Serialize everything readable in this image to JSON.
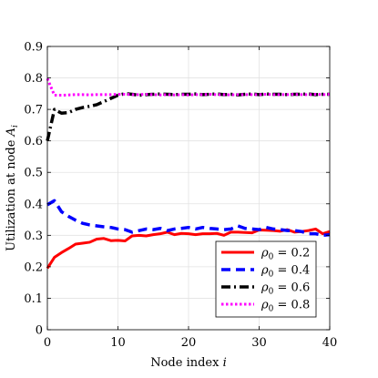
{
  "chart_data": {
    "type": "line",
    "title": "",
    "xlabel_text": "Node index ",
    "xlabel_var": "i",
    "ylabel_text": "Utilization at node ",
    "ylabel_var": "A",
    "ylabel_sub": "i",
    "xlim": [
      0,
      40
    ],
    "ylim": [
      0,
      0.9
    ],
    "xticks": [
      0,
      10,
      20,
      30,
      40
    ],
    "yticks": [
      0,
      0.1,
      0.2,
      0.3,
      0.4,
      0.5,
      0.6,
      0.7,
      0.8,
      0.9
    ],
    "xtick_labels": [
      "0",
      "10",
      "20",
      "30",
      "40"
    ],
    "ytick_labels": [
      "0",
      "0.1",
      "0.2",
      "0.3",
      "0.4",
      "0.5",
      "0.6",
      "0.7",
      "0.8",
      "0.9"
    ],
    "grid": true,
    "legend_position": "bottom-right",
    "x": [
      0,
      1,
      2,
      3,
      4,
      5,
      6,
      7,
      8,
      9,
      10,
      11,
      12,
      13,
      14,
      15,
      16,
      17,
      18,
      19,
      20,
      21,
      22,
      23,
      24,
      25,
      26,
      27,
      28,
      29,
      30,
      31,
      32,
      33,
      34,
      35,
      36,
      37,
      38,
      39,
      40
    ],
    "series": [
      {
        "name_symbol": "ρ",
        "name_sub": "0",
        "name_rest": " = 0.2",
        "color": "#ff0000",
        "dash": "solid",
        "values": [
          0.195,
          0.23,
          0.245,
          0.258,
          0.272,
          0.275,
          0.278,
          0.288,
          0.29,
          0.283,
          0.284,
          0.282,
          0.298,
          0.3,
          0.298,
          0.302,
          0.305,
          0.31,
          0.302,
          0.306,
          0.305,
          0.302,
          0.305,
          0.305,
          0.306,
          0.3,
          0.31,
          0.31,
          0.309,
          0.308,
          0.317,
          0.316,
          0.315,
          0.313,
          0.318,
          0.31,
          0.312,
          0.315,
          0.32,
          0.305,
          0.312
        ]
      },
      {
        "name_symbol": "ρ",
        "name_sub": "0",
        "name_rest": " = 0.4",
        "color": "#0000ff",
        "dash": "dashed",
        "values": [
          0.397,
          0.41,
          0.375,
          0.36,
          0.348,
          0.338,
          0.333,
          0.33,
          0.327,
          0.325,
          0.32,
          0.318,
          0.31,
          0.315,
          0.32,
          0.318,
          0.322,
          0.315,
          0.32,
          0.322,
          0.325,
          0.32,
          0.325,
          0.322,
          0.32,
          0.318,
          0.32,
          0.33,
          0.322,
          0.32,
          0.318,
          0.325,
          0.32,
          0.318,
          0.315,
          0.315,
          0.312,
          0.305,
          0.305,
          0.3,
          0.302
        ]
      },
      {
        "name_symbol": "ρ",
        "name_sub": "0",
        "name_rest": " = 0.6",
        "color": "#000000",
        "dash": "dashdot",
        "values": [
          0.6,
          0.7,
          0.688,
          0.69,
          0.7,
          0.706,
          0.71,
          0.715,
          0.725,
          0.735,
          0.745,
          0.75,
          0.748,
          0.745,
          0.747,
          0.748,
          0.749,
          0.748,
          0.747,
          0.748,
          0.748,
          0.749,
          0.747,
          0.748,
          0.749,
          0.747,
          0.748,
          0.746,
          0.748,
          0.749,
          0.747,
          0.749,
          0.748,
          0.748,
          0.747,
          0.748,
          0.748,
          0.749,
          0.747,
          0.748,
          0.748
        ]
      },
      {
        "name_symbol": "ρ",
        "name_sub": "0",
        "name_rest": " = 0.8",
        "color": "#ff00ff",
        "dash": "dotted",
        "values": [
          0.798,
          0.745,
          0.745,
          0.746,
          0.747,
          0.747,
          0.746,
          0.747,
          0.747,
          0.747,
          0.748,
          0.748,
          0.747,
          0.747,
          0.748,
          0.747,
          0.746,
          0.747,
          0.746,
          0.747,
          0.746,
          0.747,
          0.747,
          0.748,
          0.747,
          0.747,
          0.746,
          0.747,
          0.747,
          0.747,
          0.747,
          0.748,
          0.747,
          0.747,
          0.747,
          0.748,
          0.747,
          0.747,
          0.748,
          0.747,
          0.748
        ]
      }
    ]
  }
}
